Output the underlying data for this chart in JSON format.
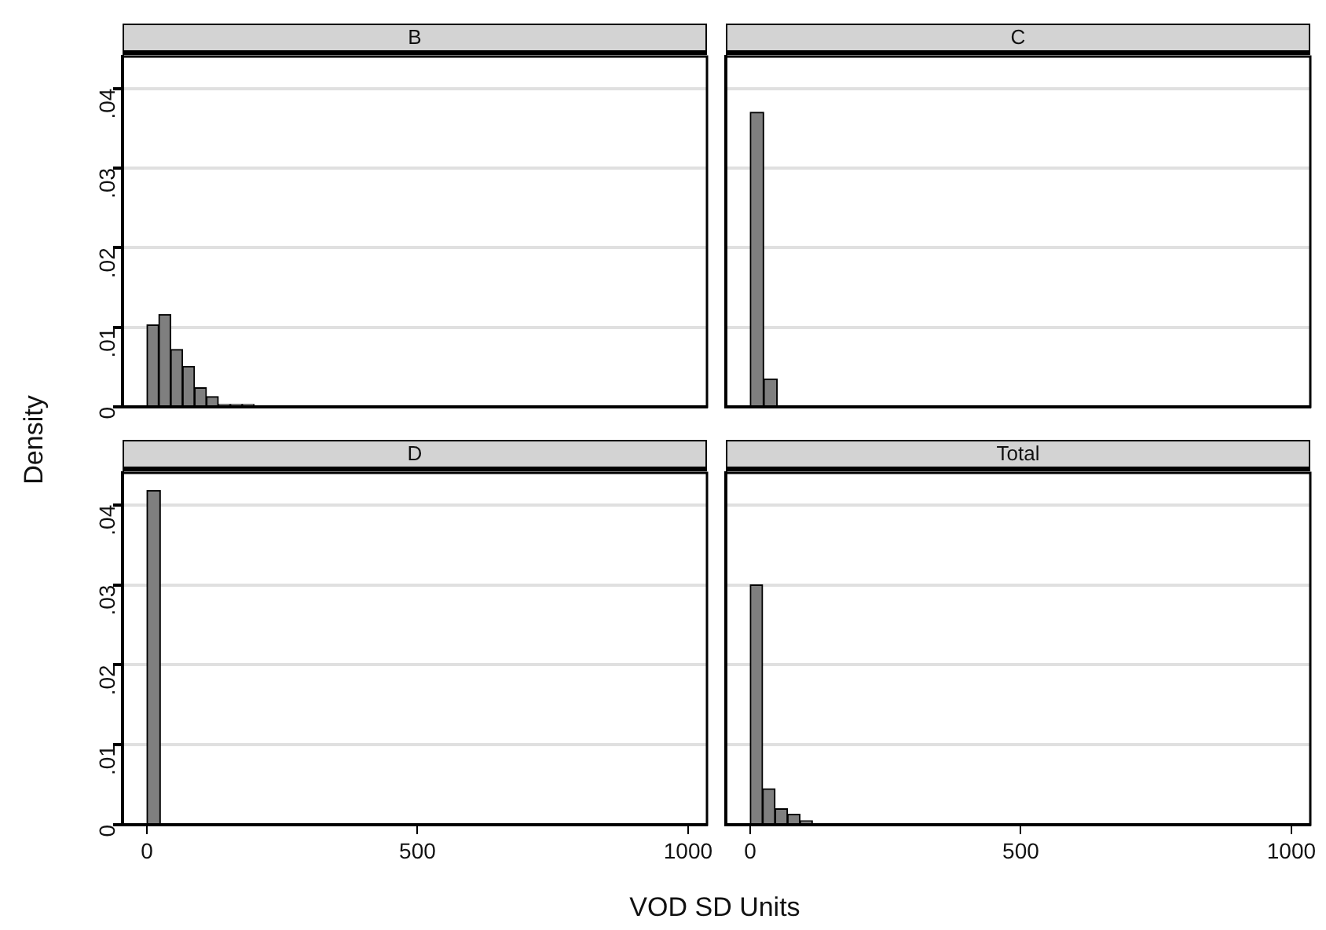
{
  "chart_data": [
    {
      "type": "histogram",
      "title": "B",
      "ylabel": "Density",
      "bins": [
        0,
        22,
        44,
        66,
        88,
        110,
        132,
        154,
        176,
        198
      ],
      "values": [
        0.0103,
        0.0116,
        0.0072,
        0.0051,
        0.0024,
        0.0013,
        0.0003,
        0.0003,
        0.0003
      ],
      "color": "#7f7f7f",
      "xlim": [
        -45,
        1035
      ],
      "ylim": [
        0,
        0.044
      ],
      "xticks": [
        0,
        500,
        1000
      ],
      "yticks": [
        0,
        {
          "value": 0.01,
          "label": ".01"
        },
        {
          "value": 0.02,
          "label": ".02"
        },
        {
          "value": 0.03,
          "label": ".03"
        },
        {
          "value": 0.04,
          "label": ".04"
        }
      ],
      "grid": "y",
      "legend": false,
      "tick_labels": "y"
    },
    {
      "type": "histogram",
      "title": "C",
      "bins": [
        0,
        25,
        50
      ],
      "values": [
        0.037,
        0.0035
      ],
      "color": "#7f7f7f",
      "xlim": [
        -45,
        1035
      ],
      "ylim": [
        0,
        0.044
      ],
      "xticks": [
        0,
        500,
        1000
      ],
      "yticks": [
        0,
        0.01,
        0.02,
        0.03,
        0.04
      ],
      "grid": "y",
      "legend": false,
      "tick_labels": false
    },
    {
      "type": "histogram",
      "title": "D",
      "bins": [
        0,
        25
      ],
      "values": [
        0.0418
      ],
      "color": "#7f7f7f",
      "xlim": [
        -45,
        1035
      ],
      "ylim": [
        0,
        0.044
      ],
      "xticks": [
        0,
        500,
        1000
      ],
      "yticks": [
        0,
        {
          "value": 0.01,
          "label": ".01"
        },
        {
          "value": 0.02,
          "label": ".02"
        },
        {
          "value": 0.03,
          "label": ".03"
        },
        {
          "value": 0.04,
          "label": ".04"
        }
      ],
      "grid": "y",
      "legend": false
    },
    {
      "type": "histogram",
      "title": "Total",
      "xlabel": "VOD SD Units",
      "bins": [
        0,
        23,
        46,
        69,
        92,
        115
      ],
      "values": [
        0.03,
        0.0045,
        0.002,
        0.0013,
        0.0005
      ],
      "color": "#7f7f7f",
      "xlim": [
        -45,
        1035
      ],
      "ylim": [
        0,
        0.044
      ],
      "xticks": [
        0,
        500,
        1000
      ],
      "yticks": [
        0,
        0.01,
        0.02,
        0.03,
        0.04
      ],
      "grid": "y",
      "legend": false,
      "tick_labels": "x"
    }
  ]
}
